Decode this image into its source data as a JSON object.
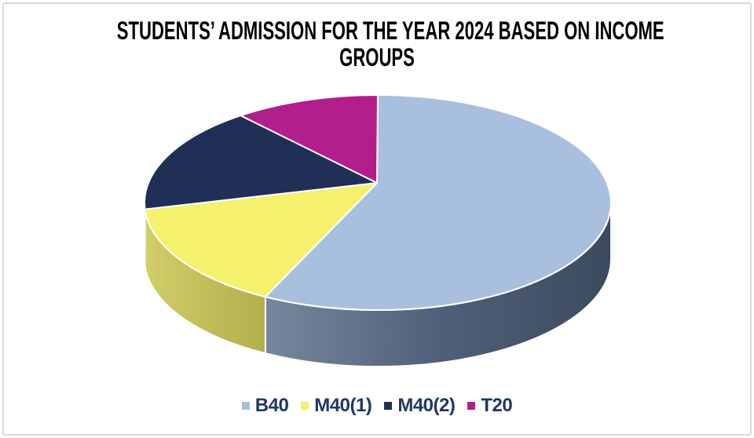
{
  "header": {
    "title_line1": "STUDENTS’ ADMISSION FOR THE YEAR 2024 BASED ON INCOME",
    "title_line2": "GROUPS",
    "title_color": "#000000"
  },
  "chart_data": {
    "type": "pie",
    "style": "3d",
    "title": "STUDENTS’ ADMISSION FOR THE YEAR 2024 BASED ON INCOME GROUPS",
    "categories": [
      "B40",
      "M40(1)",
      "M40(2)",
      "T20"
    ],
    "values": [
      58,
      16,
      16,
      10
    ],
    "series": [
      {
        "name": "B40",
        "value_percent": 58,
        "color": "#A8C0DE"
      },
      {
        "name": "M40(1)",
        "value_percent": 16,
        "color": "#F4F16D"
      },
      {
        "name": "M40(2)",
        "value_percent": 16,
        "color": "#1F2F55"
      },
      {
        "name": "T20",
        "value_percent": 10,
        "color": "#B21E8C"
      }
    ],
    "start_angle_deg": 0,
    "direction": "clockwise",
    "data_labels": "none",
    "legend_position": "bottom"
  },
  "legend": {
    "text_color": "#1F3864"
  },
  "canvas": {
    "background": "#FFFFFF",
    "border_color": "#D9D9D9"
  }
}
